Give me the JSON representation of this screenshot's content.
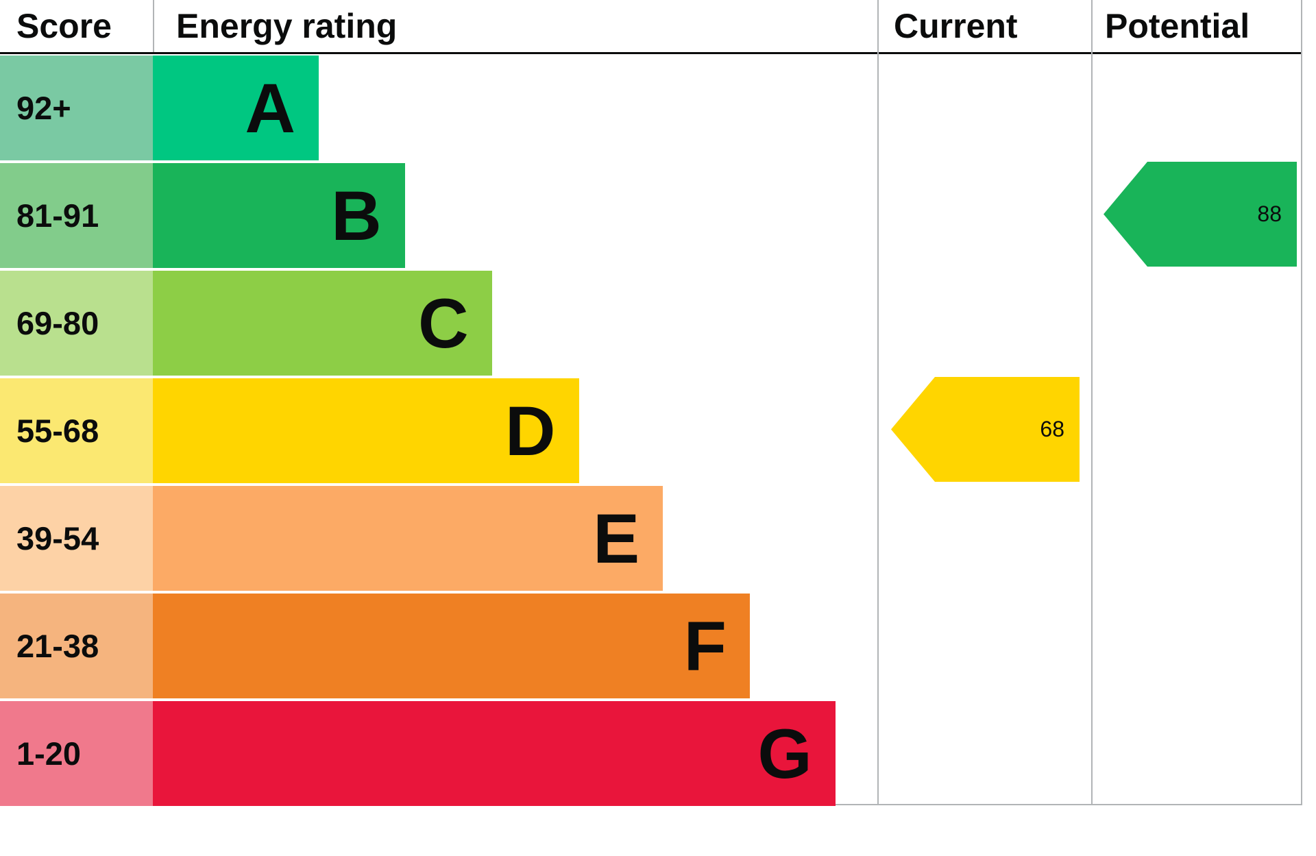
{
  "header": {
    "score": "Score",
    "energy_rating": "Energy rating",
    "current": "Current",
    "potential": "Potential"
  },
  "chart_data": {
    "type": "bar",
    "subtype": "epc-energy-rating-chart",
    "title": "Energy rating",
    "bands": [
      {
        "score": "92+",
        "letter": "A",
        "bar_color": "#00c781",
        "score_bg": "#7ac9a3",
        "bar_width_pct": 22.9
      },
      {
        "score": "81-91",
        "letter": "B",
        "bar_color": "#19b459",
        "score_bg": "#82cc8b",
        "bar_width_pct": 34.8
      },
      {
        "score": "69-80",
        "letter": "C",
        "bar_color": "#8dce46",
        "score_bg": "#b9e08e",
        "bar_width_pct": 46.8
      },
      {
        "score": "55-68",
        "letter": "D",
        "bar_color": "#ffd500",
        "score_bg": "#fbe871",
        "bar_width_pct": 58.8
      },
      {
        "score": "39-54",
        "letter": "E",
        "bar_color": "#fcaa65",
        "score_bg": "#fdd2a6",
        "bar_width_pct": 70.4
      },
      {
        "score": "21-38",
        "letter": "F",
        "bar_color": "#ef8023",
        "score_bg": "#f5b47e",
        "bar_width_pct": 82.4
      },
      {
        "score": "1-20",
        "letter": "G",
        "bar_color": "#e9153b",
        "score_bg": "#f0798c",
        "bar_width_pct": 94.2
      }
    ],
    "current": {
      "value": 68,
      "band": "D",
      "band_index": 3,
      "arrow_color": "#ffd500"
    },
    "potential": {
      "value": 88,
      "band": "B",
      "band_index": 1,
      "arrow_color": "#19b459"
    },
    "divider_color": "#b1b4b6",
    "header_rule_color": "#0b0c0c"
  }
}
